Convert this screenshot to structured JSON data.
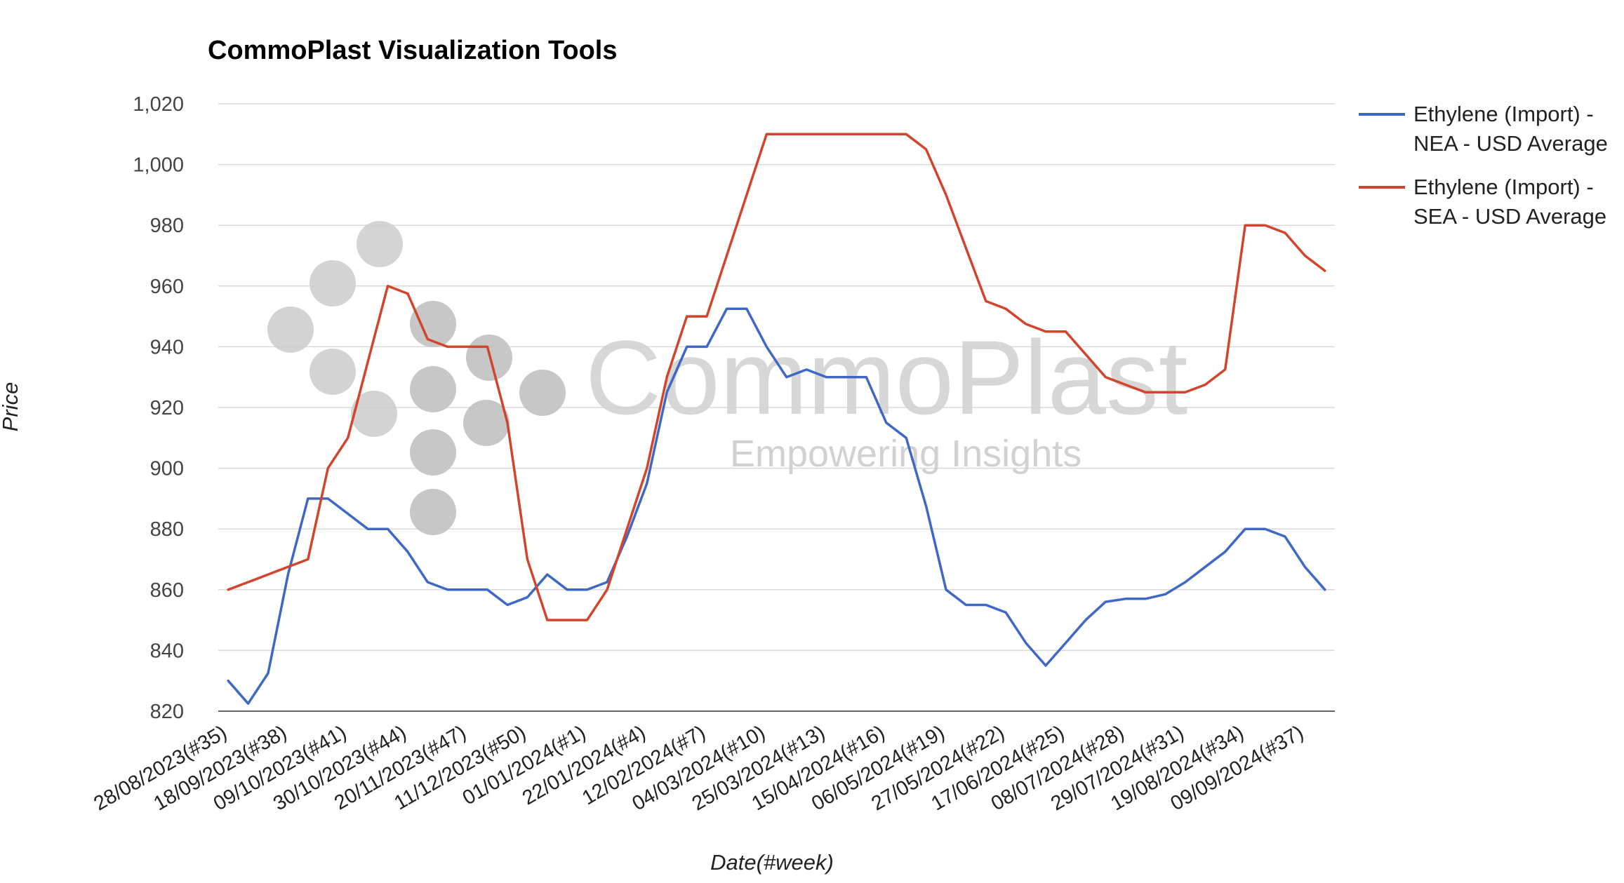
{
  "chart_data": {
    "type": "line",
    "title": "CommoPlast Visualization Tools",
    "xlabel": "Date(#week)",
    "ylabel": "Price",
    "ylim": [
      820,
      1020
    ],
    "yticks": [
      820,
      840,
      860,
      880,
      900,
      920,
      940,
      960,
      980,
      1000,
      1020
    ],
    "ytick_labels": [
      "820",
      "840",
      "860",
      "880",
      "900",
      "920",
      "940",
      "960",
      "980",
      "1,000",
      "1,020"
    ],
    "grid": true,
    "legend_position": "right",
    "x_tick_labels": [
      "28/08/2023(#35)",
      "18/09/2023(#38)",
      "09/10/2023(#41)",
      "30/10/2023(#44)",
      "20/11/2023(#47)",
      "11/12/2023(#50)",
      "01/01/2024(#1)",
      "22/01/2024(#4)",
      "12/02/2024(#7)",
      "04/03/2024(#10)",
      "25/03/2024(#13)",
      "15/04/2024(#16)",
      "06/05/2024(#19)",
      "27/05/2024(#22)",
      "17/06/2024(#25)",
      "08/07/2024(#28)",
      "29/07/2024(#31)",
      "19/08/2024(#34)",
      "09/09/2024(#37)"
    ],
    "tick_every": 3,
    "series": [
      {
        "name": "Ethylene (Import) - NEA - USD Average",
        "legend_lines": [
          "Ethylene (Import) -",
          "NEA - USD Average"
        ],
        "color": "#3f68c6",
        "values": [
          830,
          822.5,
          832.5,
          865,
          890,
          890,
          885,
          880,
          880,
          872.5,
          862.5,
          860,
          860,
          860,
          855,
          857.5,
          865,
          860,
          860,
          862.5,
          877.5,
          895,
          925,
          940,
          940,
          952.5,
          952.5,
          940,
          930,
          932.5,
          930,
          930,
          930,
          915,
          910,
          887.5,
          860,
          855,
          855,
          852.5,
          842.5,
          835,
          842.5,
          850,
          856,
          857,
          857,
          858.5,
          862.5,
          867.5,
          872.5,
          880,
          880,
          877.5,
          867.5,
          860
        ]
      },
      {
        "name": "Ethylene (Import) - SEA - USD Average",
        "legend_lines": [
          "Ethylene (Import) -",
          "SEA - USD Average"
        ],
        "color": "#d2452c",
        "values": [
          860,
          862.5,
          865,
          867.5,
          870,
          900,
          910,
          935,
          960,
          957.5,
          942.5,
          940,
          940,
          940,
          915,
          870,
          850,
          850,
          850,
          860,
          880,
          900,
          930,
          950,
          950,
          970,
          990,
          1010,
          1010,
          1010,
          1010,
          1010,
          1010,
          1010,
          1010,
          1005,
          990,
          972.5,
          955,
          952.5,
          947.5,
          945,
          945,
          937.5,
          930,
          927.5,
          925,
          925,
          925,
          927.5,
          932.5,
          980,
          980,
          977.5,
          970,
          965
        ]
      }
    ]
  },
  "watermark": {
    "brand": "CommoPlast",
    "tagline": "Empowering Insights"
  }
}
